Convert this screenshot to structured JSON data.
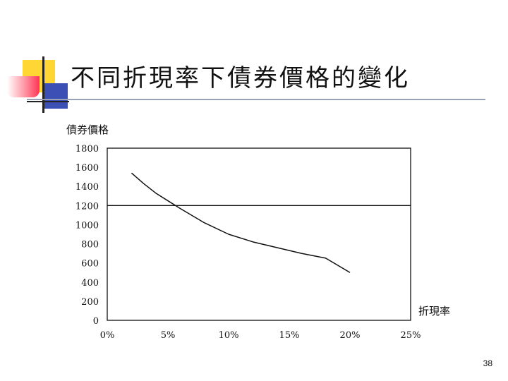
{
  "slide": {
    "title": "不同折現率下債券價格的變化",
    "page_number": "38"
  },
  "chart_data": {
    "type": "line",
    "ylabel": "債券價格",
    "xlabel": "折現率",
    "x_ticks": [
      "0%",
      "5%",
      "10%",
      "15%",
      "20%",
      "25%"
    ],
    "y_ticks": [
      "0",
      "200",
      "400",
      "600",
      "800",
      "1000",
      "1200",
      "1400",
      "1600",
      "1800"
    ],
    "xlim": [
      0,
      25
    ],
    "ylim": [
      0,
      1800
    ],
    "grid": false,
    "series": [
      {
        "x": [
          2,
          3,
          4,
          5,
          6,
          8,
          10,
          12,
          14,
          16,
          18,
          20
        ],
        "values": [
          1540,
          1430,
          1330,
          1250,
          1170,
          1020,
          900,
          820,
          760,
          700,
          650,
          500
        ]
      }
    ],
    "reference_lines": [
      {
        "axis": "y",
        "value": 1200
      }
    ]
  }
}
